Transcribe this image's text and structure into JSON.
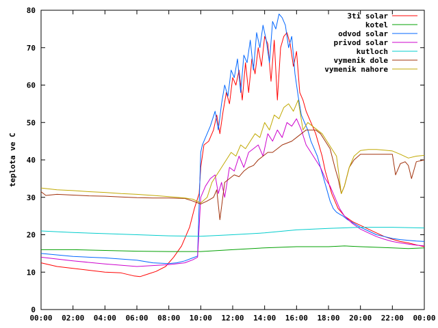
{
  "chart_data": {
    "type": "line",
    "xlabel": "",
    "ylabel": "teplota ve C",
    "ylim": [
      0,
      80
    ],
    "y_ticks": [
      0,
      10,
      20,
      30,
      40,
      50,
      60,
      70,
      80
    ],
    "x_ticks": [
      "00:00",
      "02:00",
      "04:00",
      "06:00",
      "08:00",
      "10:00",
      "12:00",
      "14:00",
      "16:00",
      "18:00",
      "20:00",
      "22:00",
      "00:00"
    ],
    "xlim_hours": [
      0,
      24
    ],
    "legend_position": "top-right",
    "grid": false,
    "series": [
      {
        "name": "3ti solar",
        "color": "#ff0000",
        "x": [
          0,
          1,
          2,
          3,
          4,
          5,
          5.8,
          6.2,
          6.7,
          7.2,
          7.8,
          8.3,
          8.8,
          9.3,
          9.6,
          9.9,
          10.0,
          10.2,
          10.5,
          10.8,
          11.0,
          11.2,
          11.4,
          11.6,
          11.8,
          12.0,
          12.2,
          12.4,
          12.6,
          12.8,
          13.0,
          13.2,
          13.4,
          13.6,
          13.8,
          14.0,
          14.2,
          14.4,
          14.6,
          14.8,
          15.0,
          15.2,
          15.4,
          15.6,
          15.8,
          16.0,
          16.2,
          16.4,
          16.6,
          16.8,
          17.0,
          17.2,
          17.4,
          17.6,
          17.8,
          18.0,
          18.2,
          18.4,
          18.6,
          18.8,
          19.0,
          19.5,
          20.0,
          20.5,
          21.0,
          21.5,
          22.0,
          22.5,
          23.0,
          23.5,
          24.0
        ],
        "values": [
          12.5,
          11.5,
          11,
          10.5,
          10,
          9.8,
          9,
          8.8,
          9.5,
          10.2,
          11.5,
          14,
          17,
          22,
          27,
          31,
          38,
          44,
          45,
          48,
          52,
          47,
          53,
          58,
          55,
          62,
          60,
          64,
          56,
          66,
          58,
          67,
          63,
          70,
          65,
          73,
          71,
          61,
          72,
          56,
          70,
          73,
          74,
          71,
          65,
          69,
          58,
          56,
          53,
          51,
          49,
          47,
          44,
          41,
          37,
          34,
          31,
          29,
          27,
          26,
          25,
          23.5,
          22.5,
          21.5,
          20.5,
          19.5,
          18.8,
          18.2,
          17.8,
          17.3,
          16.8
        ]
      },
      {
        "name": "kotel",
        "color": "#00a000",
        "x": [
          0,
          2,
          4,
          6,
          8,
          10,
          12,
          14,
          16,
          18,
          19,
          20,
          22,
          23,
          24
        ],
        "values": [
          16,
          16,
          15.8,
          15.6,
          15.5,
          15.5,
          16,
          16.5,
          16.8,
          16.8,
          17,
          16.8,
          16.5,
          16.3,
          16.5
        ]
      },
      {
        "name": "odvod solar",
        "color": "#0066ff",
        "x": [
          0,
          2,
          4,
          6,
          7,
          8,
          8.5,
          9,
          9.5,
          9.8,
          10.0,
          10.1,
          10.3,
          10.6,
          10.9,
          11.1,
          11.3,
          11.5,
          11.7,
          11.9,
          12.1,
          12.3,
          12.5,
          12.7,
          12.9,
          13.1,
          13.3,
          13.5,
          13.7,
          13.9,
          14.1,
          14.3,
          14.5,
          14.7,
          14.9,
          15.1,
          15.3,
          15.5,
          15.7,
          15.9,
          16.1,
          16.3,
          16.5,
          16.7,
          16.9,
          17.1,
          17.3,
          17.5,
          17.7,
          17.9,
          18.1,
          18.3,
          18.5,
          18.7,
          18.9,
          19.2,
          19.6,
          20.0,
          20.5,
          21.0,
          21.5,
          22.0,
          22.5,
          23.0,
          23.5,
          24.0
        ],
        "values": [
          15,
          14.2,
          13.8,
          13.2,
          12.5,
          12.3,
          12.5,
          13,
          13.8,
          14.3,
          42,
          44,
          46,
          49,
          53,
          48,
          55,
          60,
          57,
          64,
          62,
          67,
          58,
          68,
          66,
          72,
          64,
          74,
          70,
          76,
          72,
          66,
          77,
          75,
          79,
          78,
          76,
          70,
          73,
          63,
          57,
          52,
          50,
          48,
          45,
          43,
          41,
          38,
          35,
          32,
          29,
          27,
          26,
          25.5,
          25,
          24,
          23,
          22,
          21,
          20,
          19.5,
          19,
          18.7,
          18.5,
          18.3,
          18.2
        ]
      },
      {
        "name": "privod solar",
        "color": "#cc00cc",
        "x": [
          0,
          2,
          4,
          6,
          8,
          9,
          9.5,
          9.8,
          10.0,
          10.3,
          10.6,
          10.9,
          11.1,
          11.3,
          11.5,
          11.8,
          12.1,
          12.4,
          12.7,
          13.0,
          13.3,
          13.6,
          13.9,
          14.2,
          14.5,
          14.8,
          15.1,
          15.4,
          15.7,
          16.0,
          16.3,
          16.6,
          16.9,
          17.2,
          17.5,
          17.8,
          18.1,
          18.4,
          18.7,
          19.0,
          19.5,
          20.0,
          20.5,
          21.0,
          21.5,
          22.0,
          22.5,
          23.0,
          23.5,
          24.0
        ],
        "values": [
          14,
          13,
          12.2,
          11.5,
          12,
          12.5,
          13.3,
          14,
          30,
          33,
          35,
          36,
          31,
          34,
          30,
          38,
          37,
          41,
          38,
          42,
          43,
          44,
          41,
          47,
          45,
          48,
          46,
          50,
          49,
          51,
          48,
          44,
          42,
          40,
          38,
          35,
          33,
          30,
          27,
          25,
          23,
          21.5,
          20.5,
          19.5,
          18.8,
          18.2,
          17.8,
          17.5,
          17.2,
          17
        ]
      },
      {
        "name": "kutloch",
        "color": "#00cccc",
        "x": [
          0,
          2,
          4,
          6,
          8,
          10,
          12,
          14,
          16,
          18,
          20,
          22,
          24
        ],
        "values": [
          21,
          20.6,
          20.3,
          20,
          19.7,
          19.6,
          20,
          20.5,
          21.3,
          21.7,
          22,
          22,
          21.8
        ]
      },
      {
        "name": "vymenik dole",
        "color": "#a0300a",
        "x": [
          0,
          0.3,
          1,
          2,
          3,
          4,
          5,
          6,
          7,
          8,
          9,
          9.5,
          10.0,
          10.4,
          10.8,
          11.0,
          11.2,
          11.5,
          11.8,
          12.1,
          12.4,
          12.7,
          13.0,
          13.3,
          13.6,
          13.9,
          14.2,
          14.5,
          14.8,
          15.1,
          15.4,
          15.7,
          16.0,
          16.3,
          16.6,
          16.9,
          17.2,
          17.5,
          17.8,
          18.1,
          18.4,
          18.6,
          18.8,
          19.0,
          19.3,
          19.6,
          20.0,
          20.5,
          21.0,
          21.5,
          22.0,
          22.2,
          22.5,
          22.8,
          23.0,
          23.2,
          23.5,
          24.0
        ],
        "values": [
          31.5,
          30.5,
          30.8,
          30.6,
          30.4,
          30.3,
          30.1,
          29.9,
          29.8,
          29.8,
          29.7,
          29,
          28.2,
          29,
          30,
          32,
          24,
          34,
          35,
          36,
          35.5,
          37,
          38,
          38.5,
          40,
          41,
          42,
          42,
          43,
          44,
          44.5,
          45,
          46,
          47,
          48,
          48,
          48,
          47,
          45,
          43,
          38,
          35,
          31,
          33,
          38,
          40,
          41.5,
          41.5,
          41.5,
          41.5,
          41.5,
          36,
          39,
          39.5,
          38.5,
          35,
          39.5,
          40
        ]
      },
      {
        "name": "vymenik nahore",
        "color": "#c0a800",
        "x": [
          0,
          1,
          2,
          3,
          4,
          5,
          6,
          7,
          8,
          9,
          9.5,
          10.0,
          10.4,
          10.7,
          11.0,
          11.3,
          11.6,
          11.9,
          12.2,
          12.5,
          12.8,
          13.1,
          13.4,
          13.7,
          14.0,
          14.3,
          14.6,
          14.9,
          15.2,
          15.5,
          15.8,
          16.1,
          16.4,
          16.7,
          17.0,
          17.3,
          17.6,
          17.9,
          18.2,
          18.5,
          18.8,
          19.0,
          19.3,
          19.6,
          20.0,
          20.5,
          21.0,
          21.5,
          22.0,
          22.5,
          23.0,
          23.5,
          24.0
        ],
        "values": [
          32.5,
          32,
          31.8,
          31.5,
          31.3,
          31,
          30.8,
          30.5,
          30.2,
          29.8,
          29.5,
          28.5,
          30,
          34,
          36,
          38,
          40,
          42,
          41,
          44,
          43,
          45,
          47,
          46,
          50,
          48,
          52,
          51,
          54,
          55,
          53,
          56,
          48,
          50,
          49,
          48,
          47,
          45,
          43,
          41,
          31,
          33,
          38,
          41,
          42.5,
          42.8,
          42.8,
          42.6,
          42.4,
          41.5,
          40.5,
          41,
          41.2
        ]
      }
    ]
  }
}
